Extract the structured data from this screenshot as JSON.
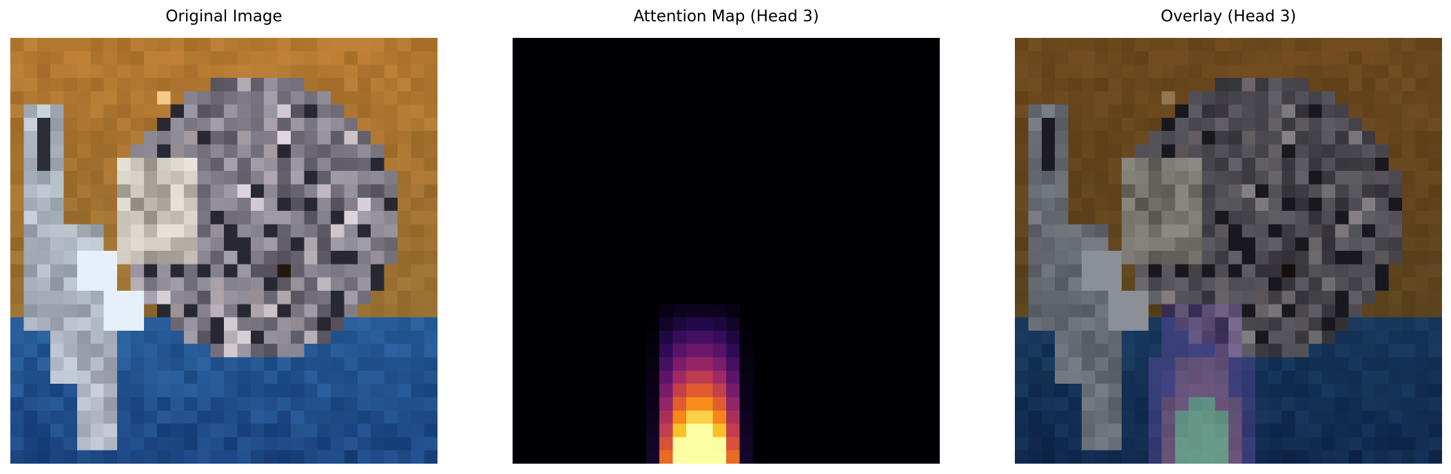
{
  "figure": {
    "panels": [
      {
        "title": "Original Image"
      },
      {
        "title": "Attention Map (Head 3)"
      },
      {
        "title": "Overlay (Head 3)"
      }
    ]
  },
  "image_description": {
    "original": "Low-resolution 32x32 pixelated photo of a cat sitting on blue fabric against a brown/orange background",
    "attention_colormap": "inferno",
    "attention_focus": "bright vertical column at bottom-center, strongest at the very bottom",
    "overlay": "original image darkened with purple/green attention tint at bottom-center"
  }
}
